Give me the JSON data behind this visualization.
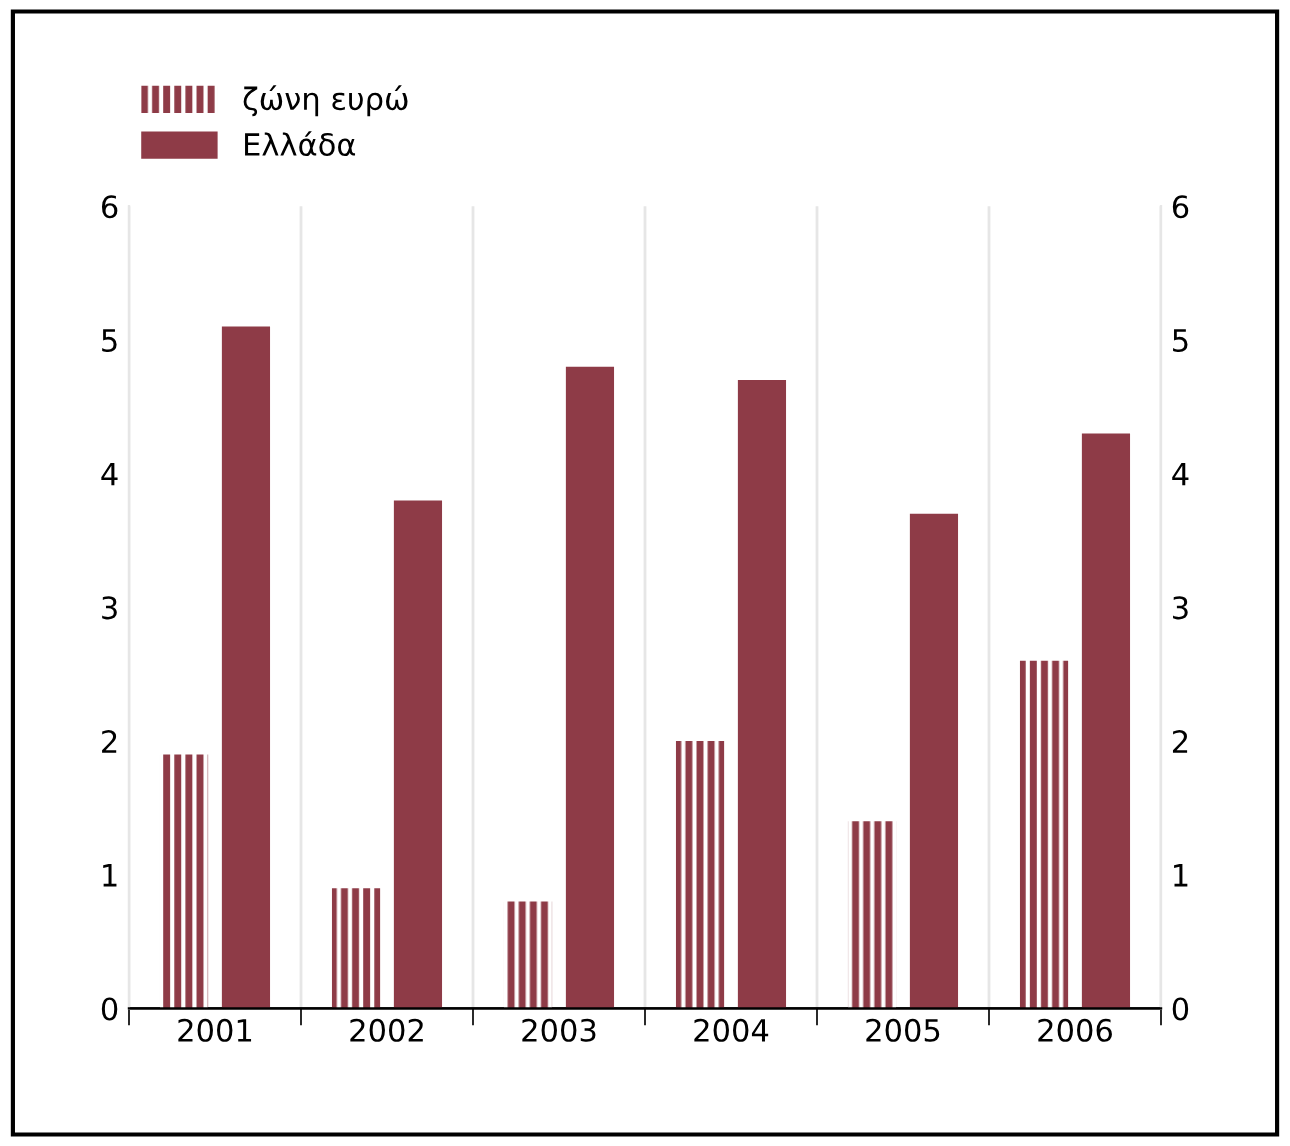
{
  "chart_data": {
    "type": "bar",
    "categories": [
      "2001",
      "2002",
      "2003",
      "2004",
      "2005",
      "2006"
    ],
    "series": [
      {
        "name": "ζώνη ευρώ",
        "color": "#8e3b47",
        "values": [
          1.9,
          0.9,
          0.8,
          2.0,
          1.4,
          2.6
        ]
      },
      {
        "name": "Ελλάδα",
        "color": "#8e3b47",
        "values": [
          5.1,
          3.8,
          4.8,
          4.7,
          3.7,
          4.3
        ]
      }
    ],
    "ylim": [
      0,
      6
    ],
    "yticks": [
      0,
      1,
      2,
      3,
      4,
      5,
      6
    ],
    "y2lim": [
      0,
      6
    ],
    "y2ticks": [
      0,
      1,
      2,
      3,
      4,
      5,
      6
    ],
    "grid": "x",
    "legend": "top left"
  }
}
